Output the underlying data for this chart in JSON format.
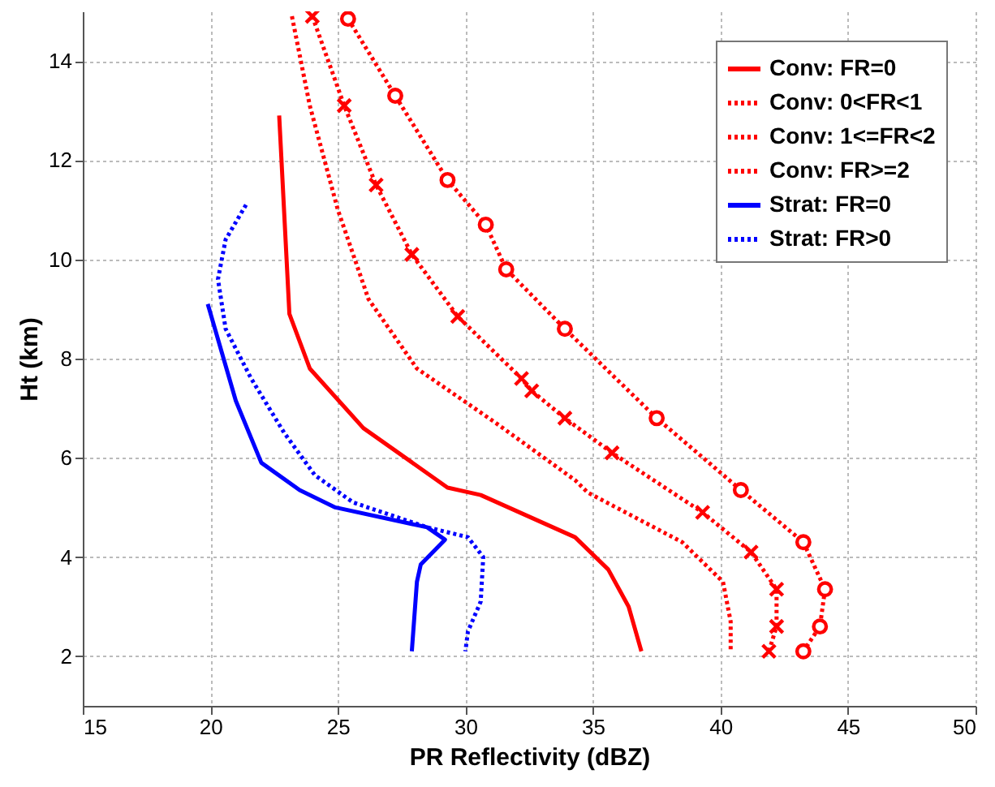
{
  "chart_data": {
    "type": "line",
    "xlabel": "PR Reflectivity (dBZ)",
    "ylabel": "Ht (km)",
    "xlim": [
      15,
      50
    ],
    "xticks": [
      15,
      20,
      25,
      30,
      35,
      40,
      45,
      50
    ],
    "ylim": [
      1,
      15
    ],
    "yticks": [
      2,
      4,
      6,
      8,
      10,
      12,
      14
    ],
    "grid": true,
    "legend": "top right",
    "series": [
      {
        "name": "Conv: FR=0",
        "color": "#ff0000",
        "line_style": "solid",
        "marker": "none",
        "x": [
          22.7,
          23.1,
          23.9,
          26,
          29.3,
          30.6,
          34.3,
          35.6,
          36.4,
          36.9
        ],
        "values": [
          12.9,
          8.9,
          7.8,
          6.6,
          5.4,
          5.25,
          4.4,
          3.75,
          3.0,
          2.1
        ]
      },
      {
        "name": "Conv: 0<FR<1",
        "color": "#ff0000",
        "line_style": "dotted",
        "marker": "none",
        "x": [
          23.2,
          23.9,
          25,
          26.2,
          28.1,
          31.2,
          34.3,
          34.8,
          38.5,
          40.1,
          40.4,
          40.4
        ],
        "values": [
          14.9,
          13.1,
          11.0,
          9.2,
          7.8,
          6.7,
          5.55,
          5.3,
          4.3,
          3.5,
          2.7,
          2.1
        ]
      },
      {
        "name": "Conv: 1<=FR<2",
        "color": "#ff0000",
        "line_style": "dotted",
        "marker": "cross",
        "x": [
          24,
          25.25,
          26.5,
          27.9,
          29.7,
          32.2,
          32.6,
          33.9,
          35.75,
          39.3,
          41.2,
          42.2,
          42.2,
          41.9
        ],
        "values": [
          14.9,
          13.1,
          11.5,
          10.1,
          8.85,
          7.6,
          7.35,
          6.8,
          6.1,
          4.9,
          4.1,
          3.35,
          2.6,
          2.1
        ]
      },
      {
        "name": "Conv: FR>=2",
        "color": "#ff0000",
        "line_style": "dotted",
        "marker": "circle",
        "x": [
          25.4,
          27.25,
          29.3,
          30.8,
          31.6,
          33.9,
          37.5,
          40.8,
          43.25,
          44.1,
          43.9,
          43.25
        ],
        "values": [
          14.85,
          13.3,
          11.6,
          10.7,
          9.8,
          8.6,
          6.8,
          5.35,
          4.3,
          3.35,
          2.6,
          2.1
        ]
      },
      {
        "name": "Strat: FR=0",
        "color": "#0000ff",
        "line_style": "solid",
        "marker": "none",
        "x": [
          19.9,
          21.0,
          22.0,
          23.5,
          24.9,
          28.5,
          29.2,
          28.25,
          28.1,
          27.9
        ],
        "values": [
          9.1,
          7.15,
          5.9,
          5.35,
          5.0,
          4.6,
          4.35,
          3.85,
          3.5,
          2.1
        ]
      },
      {
        "name": "Strat: FR>0",
        "color": "#0000ff",
        "line_style": "dotted",
        "marker": "none",
        "x": [
          21.4,
          20.6,
          20.3,
          20.6,
          21.6,
          22.9,
          24.1,
          25.6,
          28.5,
          30.1,
          30.7,
          30.6,
          30.1,
          30.0
        ],
        "values": [
          11.1,
          10.4,
          9.6,
          8.6,
          7.6,
          6.5,
          5.65,
          5.1,
          4.6,
          4.4,
          4.0,
          3.1,
          2.5,
          2.1
        ]
      }
    ]
  }
}
